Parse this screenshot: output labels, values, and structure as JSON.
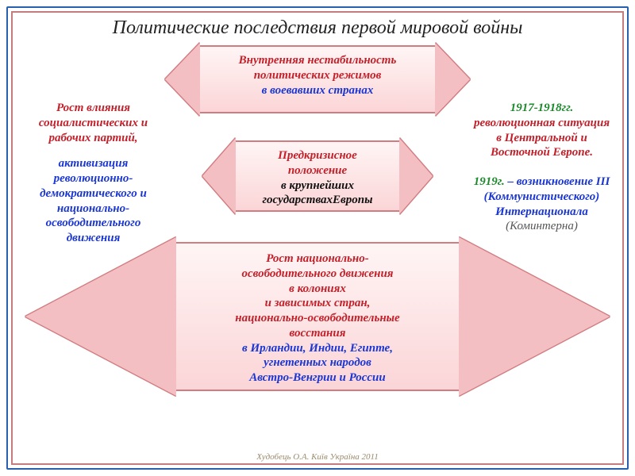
{
  "title": "Политические последствия первой мировой войны",
  "colors": {
    "outer_border": "#2a5fb0",
    "inner_border": "#c77b7f",
    "arrow_fill_top": "#fff5f5",
    "arrow_fill_bottom": "#fbd5d7",
    "arrow_border": "#d07c80",
    "red_text": "#c3202a",
    "blue_text": "#1a36d3",
    "green_text": "#1a8a2a",
    "black_text": "#111111",
    "credit_text": "#9a8a6a"
  },
  "fonts": {
    "family": "Times New Roman / Georgia (serif, italic)",
    "title_size_pt": 18,
    "body_size_pt": 11
  },
  "arrow_boxes": {
    "top": {
      "type": "double-arrow",
      "red_line1": "Внутренняя нестабильность",
      "red_line2": "политических режимов",
      "blue_line": "в воевавших странах"
    },
    "middle": {
      "type": "double-arrow",
      "red_line1": "Предкризисное",
      "red_line2": "положение",
      "black_line1": "в крупнейших",
      "black_line2": "государствахЕвропы"
    },
    "bottom": {
      "type": "double-arrow-wide",
      "red_line1": "Рост национально-",
      "red_line2": "освободительного движения",
      "red_line3": "в колониях",
      "red_line4": "и зависимых стран,",
      "red_line5": "национально-освободительные",
      "red_line6": "восстания",
      "blue_line1": "в Ирландии, Индии, Египте,",
      "blue_line2": "угнетенных народов",
      "blue_line3": "Австро-Венгрии и России"
    }
  },
  "left_panel": {
    "red": "Рост влияния социалистических и рабочих партий,",
    "blue": "активизация революционно-демократического и национально-освободительного движения"
  },
  "right_panel": {
    "p1_year": "1917-1918гг.",
    "p1_rest": "революционная ситуация в Центральной и Восточной Европе.",
    "p2_year": "1919г.",
    "p2_rest": " – возникновение III (Коммунистического) Интернационала",
    "p2_paren": "(Коминтерна)"
  },
  "credit": "Худобець О.А. Київ Україна 2011"
}
